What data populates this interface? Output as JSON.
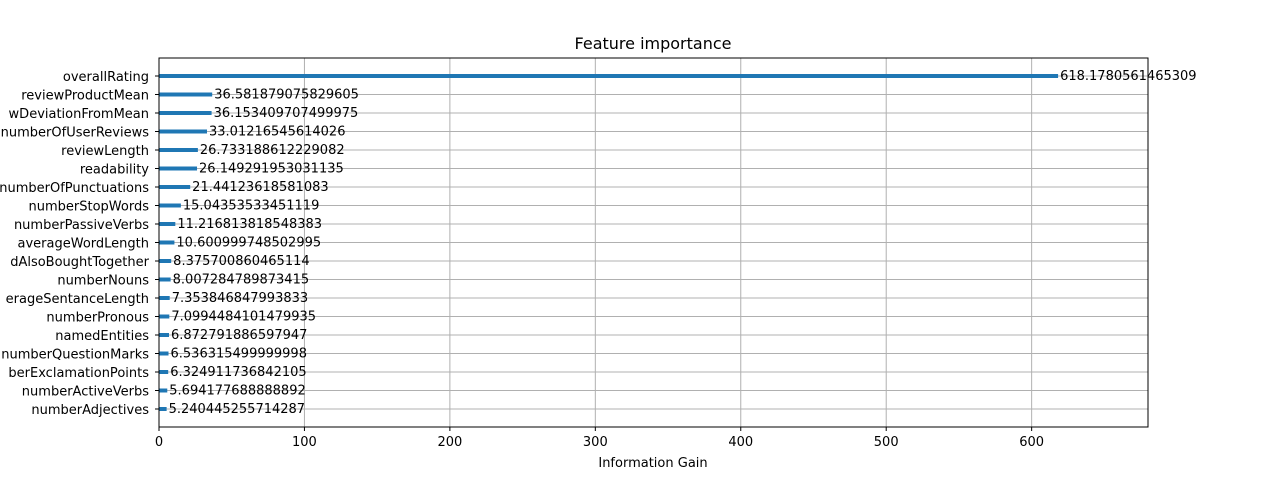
{
  "chart_data": {
    "type": "bar",
    "orientation": "horizontal",
    "title": "Feature importance",
    "xlabel": "Information Gain",
    "ylabel": "",
    "xlim": [
      0,
      680
    ],
    "xticks": [
      0,
      100,
      200,
      300,
      400,
      500,
      600
    ],
    "grid": true,
    "bar_color": "#1f77b4",
    "categories": [
      "overallRating",
      "reviewProductMean",
      "wDeviationFromMean",
      "numberOfUserReviews",
      "reviewLength",
      "readability",
      "numberOfPunctuations",
      "numberStopWords",
      "numberPassiveVerbs",
      "averageWordLength",
      "dAlsoBoughtTogether",
      "numberNouns",
      "erageSentanceLength",
      "numberPronous",
      "namedEntities",
      "numberQuestionMarks",
      "berExclamationPoints",
      "numberActiveVerbs",
      "numberAdjectives"
    ],
    "values": [
      618.1780561465309,
      36.581879075829605,
      36.153409707499975,
      33.01216545614026,
      26.733188612229082,
      26.149291953031135,
      21.44123618581083,
      15.04353533451119,
      11.216813818548383,
      10.600999748502995,
      8.375700860465114,
      8.007284789873415,
      7.353846847993833,
      7.0994484101479935,
      6.872791886597947,
      6.536315499999998,
      6.324911736842105,
      5.694177688888892,
      5.240445255714287
    ],
    "value_labels": [
      "618.1780561465309",
      "36.581879075829605",
      "36.153409707499975",
      "33.01216545614026",
      "26.733188612229082",
      "26.149291953031135",
      "21.44123618581083",
      "15.04353533451119",
      "11.216813818548383",
      "10.600999748502995",
      "8.375700860465114",
      "8.007284789873415",
      "7.353846847993833",
      "7.0994484101479935",
      "6.872791886597947",
      "6.536315499999998",
      "6.324911736842105",
      "5.694177688888892",
      "5.240445255714287"
    ]
  }
}
